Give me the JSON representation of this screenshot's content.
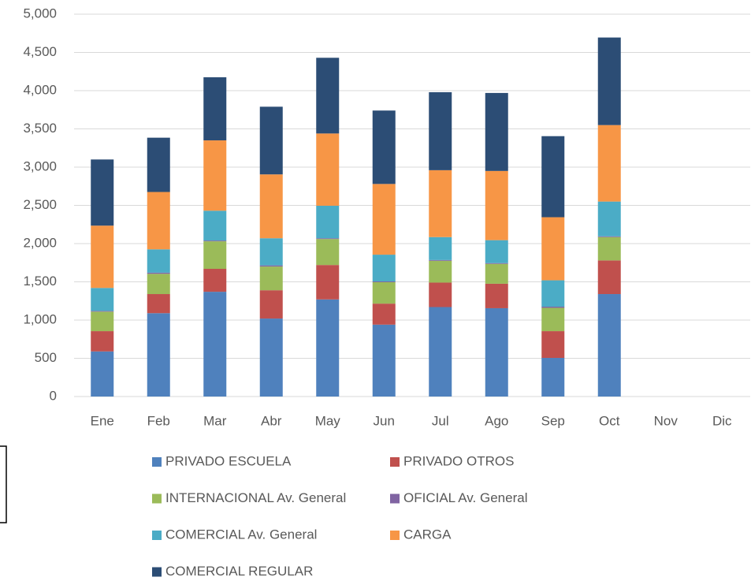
{
  "chart_data": {
    "type": "bar",
    "stacked": true,
    "categories": [
      "Ene",
      "Feb",
      "Mar",
      "Abr",
      "May",
      "Jun",
      "Jul",
      "Ago",
      "Sep",
      "Oct",
      "Nov",
      "Dic"
    ],
    "series": [
      {
        "name": "PRIVADO ESCUELA",
        "color": "#4f81bd",
        "values": [
          590,
          1090,
          1370,
          1020,
          1270,
          940,
          1170,
          1155,
          505,
          1340,
          null,
          null
        ]
      },
      {
        "name": "PRIVADO OTROS",
        "color": "#c0504d",
        "values": [
          265,
          250,
          300,
          370,
          450,
          275,
          320,
          320,
          350,
          440,
          null,
          null
        ]
      },
      {
        "name": "INTERNACIONAL Av. General",
        "color": "#9bbb59",
        "values": [
          255,
          265,
          360,
          310,
          340,
          280,
          285,
          260,
          305,
          305,
          null,
          null
        ]
      },
      {
        "name": "OFICIAL Av. General",
        "color": "#8064a2",
        "values": [
          10,
          15,
          10,
          15,
          10,
          10,
          10,
          10,
          15,
          10,
          null,
          null
        ]
      },
      {
        "name": "COMERCIAL Av. General",
        "color": "#4bacc6",
        "values": [
          300,
          305,
          390,
          355,
          425,
          350,
          300,
          300,
          345,
          455,
          null,
          null
        ]
      },
      {
        "name": "CARGA",
        "color": "#f79646",
        "values": [
          815,
          750,
          920,
          835,
          945,
          925,
          875,
          905,
          825,
          1000,
          null,
          null
        ]
      },
      {
        "name": "COMERCIAL REGULAR",
        "color": "#2c4d75",
        "values": [
          865,
          710,
          825,
          885,
          990,
          960,
          1020,
          1020,
          1060,
          1145,
          null,
          null
        ]
      }
    ],
    "ylim": [
      0,
      5000
    ],
    "yticks": [
      0,
      500,
      {
        "value": 1000,
        "label": "1,000"
      },
      {
        "value": 1500,
        "label": "1,500"
      },
      {
        "value": 2000,
        "label": "2,000"
      },
      {
        "value": 2500,
        "label": "2,500"
      },
      {
        "value": 3000,
        "label": "3,000"
      },
      {
        "value": 3500,
        "label": "3,500"
      },
      {
        "value": 4000,
        "label": "4,000"
      },
      {
        "value": 4500,
        "label": "4,500"
      },
      {
        "value": 5000,
        "label": "5,000"
      }
    ],
    "grid": true,
    "legend": "bottom"
  }
}
